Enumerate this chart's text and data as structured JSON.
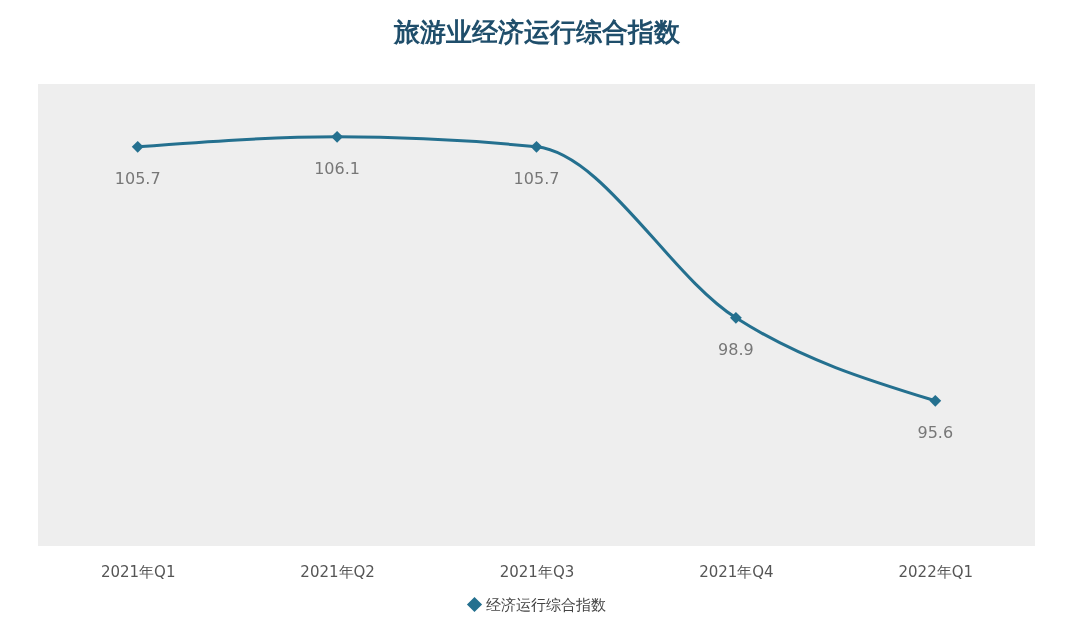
{
  "chart_data": {
    "type": "line",
    "title": "旅游业经济运行综合指数",
    "categories": [
      "2021年Q1",
      "2021年Q2",
      "2021年Q3",
      "2021年Q4",
      "2022年Q1"
    ],
    "series": [
      {
        "name": "经济运行综合指数",
        "color": "#24708f",
        "values": [
          105.7,
          106.1,
          105.7,
          98.9,
          95.6
        ]
      }
    ],
    "data_labels": true,
    "marker": "diamond",
    "line_style": "solid",
    "legend": "bottom"
  }
}
